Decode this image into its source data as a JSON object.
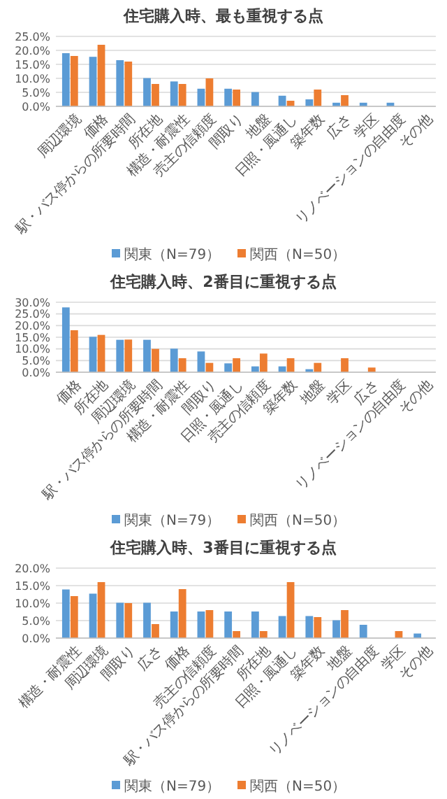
{
  "chart_data": [
    {
      "type": "bar",
      "title": "住宅購入時、最も重視する点",
      "categories": [
        "周辺環境",
        "価格",
        "駅・バス停からの所要時間",
        "所在地",
        "構造・耐震性",
        "売主の信頼度",
        "間取り",
        "地盤",
        "日照・風通し",
        "築年数",
        "広さ",
        "学区",
        "リノベーションの自由度",
        "その他"
      ],
      "series": [
        {
          "name": "関東（N=79）",
          "color": "#5b9bd5",
          "values": [
            19,
            17.7,
            16.5,
            10.1,
            8.9,
            6.3,
            6.3,
            5.1,
            3.8,
            2.5,
            1.3,
            1.3,
            1.3,
            0
          ]
        },
        {
          "name": "関西（N=50）",
          "color": "#ed7d31",
          "values": [
            18,
            22,
            16,
            8,
            8,
            10,
            6,
            0,
            2,
            6,
            4,
            0,
            0,
            0
          ]
        }
      ],
      "ylim": [
        0,
        25
      ],
      "yticks": [
        {
          "value": 0,
          "label": "0.0%"
        },
        {
          "value": 5,
          "label": "5.0%"
        },
        {
          "value": 10,
          "label": "10.0%"
        },
        {
          "value": 15,
          "label": "15.0%"
        },
        {
          "value": 20,
          "label": "20.0%"
        },
        {
          "value": 25,
          "label": "25.0%"
        }
      ],
      "grid": "y",
      "legend": "bottom"
    },
    {
      "type": "bar",
      "title": "住宅購入時、2番目に重視する点",
      "categories": [
        "価格",
        "所在地",
        "周辺環境",
        "駅・バス停からの所要時間",
        "構造・耐震性",
        "間取り",
        "日照・風通し",
        "売主の信頼度",
        "築年数",
        "地盤",
        "学区",
        "広さ",
        "リノベーションの自由度",
        "その他"
      ],
      "series": [
        {
          "name": "関東（N=79）",
          "color": "#5b9bd5",
          "values": [
            27.8,
            15.2,
            13.9,
            13.9,
            10.1,
            8.9,
            3.8,
            2.5,
            2.5,
            1.3,
            0,
            0,
            0,
            0
          ]
        },
        {
          "name": "関西（N=50）",
          "color": "#ed7d31",
          "values": [
            18,
            16,
            14,
            10,
            6,
            4,
            6,
            8,
            6,
            4,
            6,
            2,
            0,
            0
          ]
        }
      ],
      "ylim": [
        0,
        30
      ],
      "yticks": [
        {
          "value": 0,
          "label": "0.0%"
        },
        {
          "value": 5,
          "label": "5.0%"
        },
        {
          "value": 10,
          "label": "10.0%"
        },
        {
          "value": 15,
          "label": "15.0%"
        },
        {
          "value": 20,
          "label": "20.0%"
        },
        {
          "value": 25,
          "label": "25.0%"
        },
        {
          "value": 30,
          "label": "30.0%"
        }
      ],
      "grid": "y",
      "legend": "bottom"
    },
    {
      "type": "bar",
      "title": "住宅購入時、3番目に重視する点",
      "categories": [
        "構造・耐震性",
        "周辺環境",
        "間取り",
        "広さ",
        "価格",
        "売主の信頼度",
        "駅・バス停からの所要時間",
        "所在地",
        "日照・風通し",
        "築年数",
        "地盤",
        "リノベーションの自由度",
        "学区",
        "その他"
      ],
      "series": [
        {
          "name": "関東（N=79）",
          "color": "#5b9bd5",
          "values": [
            13.9,
            12.7,
            10.1,
            10.1,
            7.6,
            7.6,
            7.6,
            7.6,
            6.3,
            6.3,
            5.1,
            3.8,
            0,
            1.3
          ]
        },
        {
          "name": "関西（N=50）",
          "color": "#ed7d31",
          "values": [
            12,
            16,
            10,
            4,
            14,
            8,
            2,
            2,
            16,
            6,
            8,
            0,
            2,
            0
          ]
        }
      ],
      "ylim": [
        0,
        20
      ],
      "yticks": [
        {
          "value": 0,
          "label": "0.0%"
        },
        {
          "value": 5,
          "label": "5.0%"
        },
        {
          "value": 10,
          "label": "10.0%"
        },
        {
          "value": 15,
          "label": "15.0%"
        },
        {
          "value": 20,
          "label": "20.0%"
        }
      ],
      "grid": "y",
      "legend": "bottom"
    }
  ]
}
